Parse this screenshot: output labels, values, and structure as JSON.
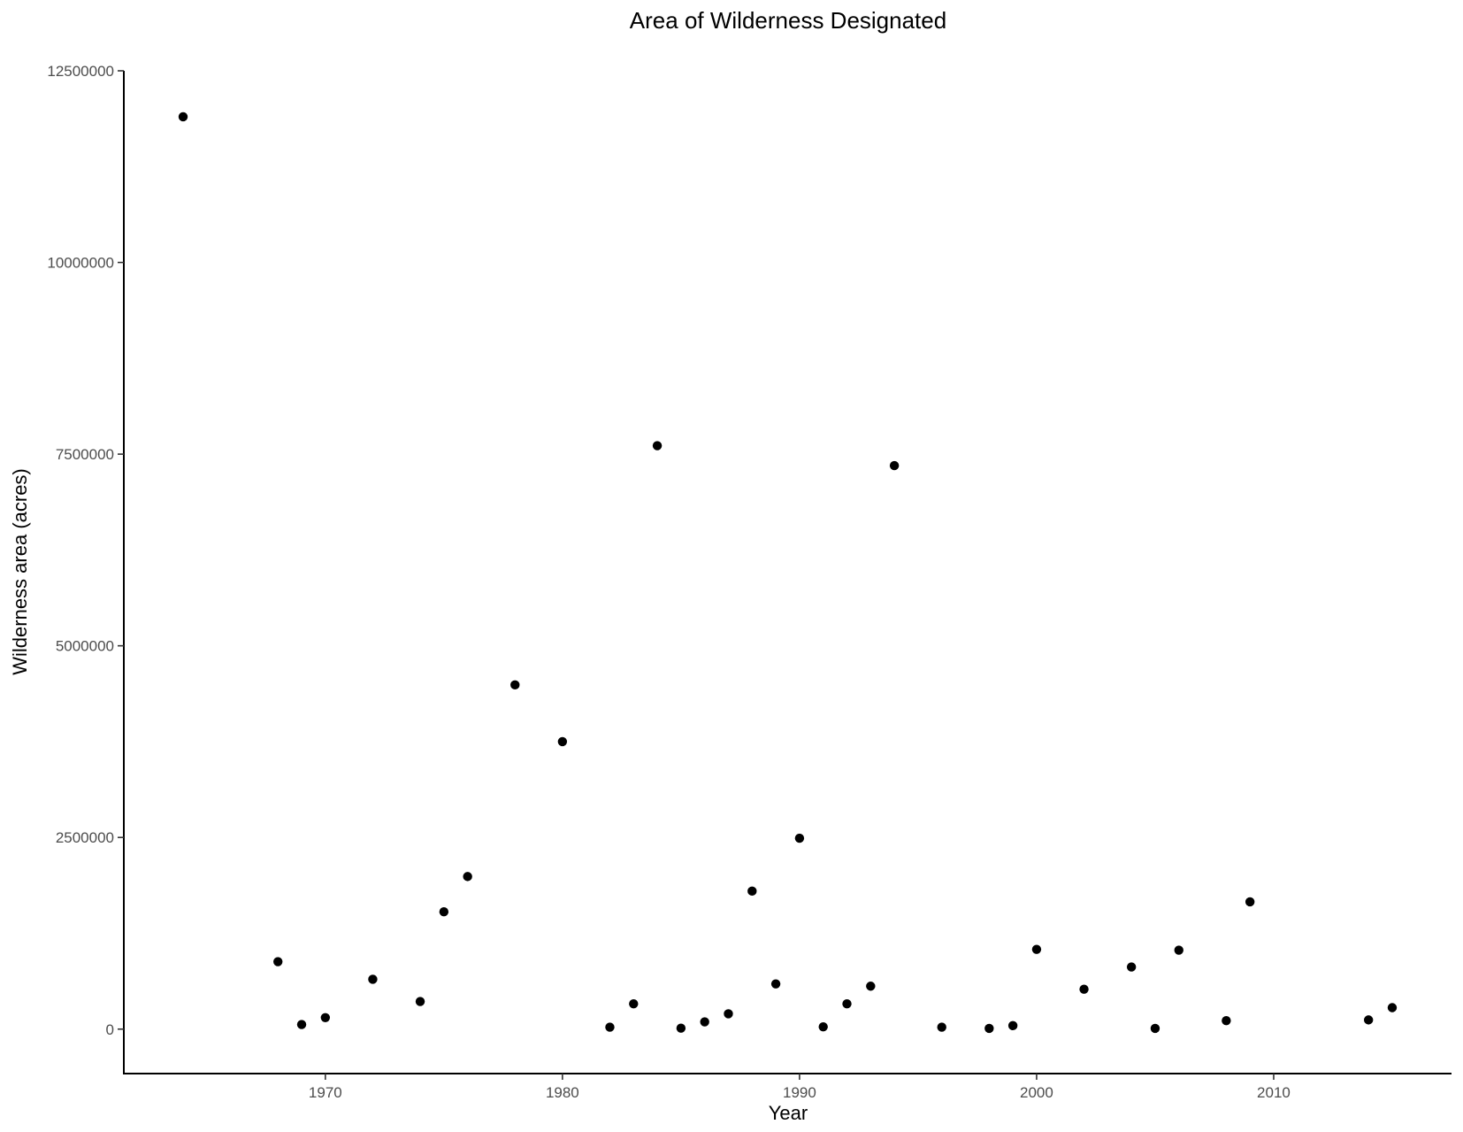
{
  "chart_data": {
    "type": "scatter",
    "title": "Area of Wilderness Designated",
    "xlabel": "Year",
    "ylabel": "Wilderness area (acres)",
    "xlim": [
      1961.5,
      2017.5
    ],
    "ylim": [
      -580000,
      12500000
    ],
    "x_ticks": [
      1970,
      1980,
      1990,
      2000,
      2010
    ],
    "x_tick_labels": [
      "1970",
      "1980",
      "1990",
      "2000",
      "2010"
    ],
    "y_ticks": [
      0,
      2500000,
      5000000,
      7500000,
      10000000,
      12500000
    ],
    "y_tick_labels": [
      "0",
      "2500000",
      "5000000",
      "7500000",
      "10000000",
      "12500000"
    ],
    "grid": false,
    "point_color": "#000000",
    "points": [
      {
        "x": 1964,
        "y": 11900000
      },
      {
        "x": 1968,
        "y": 880000
      },
      {
        "x": 1969,
        "y": 60000
      },
      {
        "x": 1970,
        "y": 150000
      },
      {
        "x": 1972,
        "y": 650000
      },
      {
        "x": 1974,
        "y": 360000
      },
      {
        "x": 1975,
        "y": 1530000
      },
      {
        "x": 1976,
        "y": 1990000
      },
      {
        "x": 1978,
        "y": 4490000
      },
      {
        "x": 1980,
        "y": 3750000
      },
      {
        "x": 1982,
        "y": 25000
      },
      {
        "x": 1983,
        "y": 330000
      },
      {
        "x": 1984,
        "y": 7610000
      },
      {
        "x": 1985,
        "y": 12000
      },
      {
        "x": 1986,
        "y": 95000
      },
      {
        "x": 1987,
        "y": 200000
      },
      {
        "x": 1988,
        "y": 1800000
      },
      {
        "x": 1989,
        "y": 590000
      },
      {
        "x": 1990,
        "y": 2490000
      },
      {
        "x": 1991,
        "y": 30000
      },
      {
        "x": 1992,
        "y": 330000
      },
      {
        "x": 1993,
        "y": 560000
      },
      {
        "x": 1994,
        "y": 7350000
      },
      {
        "x": 1996,
        "y": 25000
      },
      {
        "x": 1998,
        "y": 10000
      },
      {
        "x": 1999,
        "y": 45000
      },
      {
        "x": 2000,
        "y": 1040000
      },
      {
        "x": 2002,
        "y": 520000
      },
      {
        "x": 2004,
        "y": 810000
      },
      {
        "x": 2005,
        "y": 10000
      },
      {
        "x": 2006,
        "y": 1030000
      },
      {
        "x": 2008,
        "y": 110000
      },
      {
        "x": 2009,
        "y": 1660000
      },
      {
        "x": 2014,
        "y": 120000
      },
      {
        "x": 2015,
        "y": 280000
      }
    ]
  }
}
